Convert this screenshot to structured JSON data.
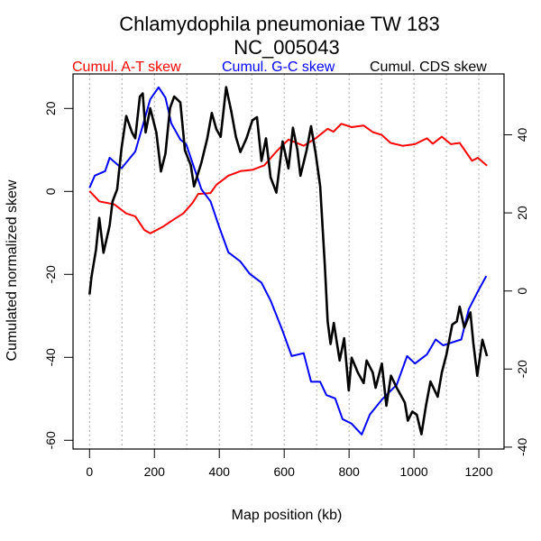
{
  "chart_data": {
    "type": "line",
    "title": "Chlamydophila pneumoniae TW 183",
    "subtitle": "NC_005043",
    "xlabel": "Map position (kb)",
    "ylabel": "Cumulated normalized skew",
    "xlim": [
      0,
      1225
    ],
    "ylim_left": [
      -60,
      25
    ],
    "ylim_right": [
      -40,
      52
    ],
    "x_ticks": [
      0,
      200,
      400,
      600,
      800,
      1000,
      1200
    ],
    "y_ticks_left": [
      -60,
      -40,
      -20,
      0,
      20
    ],
    "y_ticks_right": [
      -40,
      -20,
      0,
      20,
      40
    ],
    "grid": "vertical dotted every 100 kb",
    "legend_placement": "top",
    "colors": {
      "at": "#ff0000",
      "gc": "#0000ff",
      "cds": "#000000"
    },
    "series": [
      {
        "name": "Cumul. A-T skew",
        "axis": "left",
        "color": "#ff0000",
        "x": [
          0,
          30,
          76,
          113,
          141,
          169,
          187,
          224,
          261,
          289,
          317,
          335,
          373,
          391,
          428,
          465,
          502,
          539,
          576,
          613,
          660,
          697,
          734,
          752,
          776,
          808,
          845,
          873,
          901,
          928,
          965,
          1003,
          1040,
          1058,
          1086,
          1114,
          1141,
          1179,
          1197,
          1225
        ],
        "y": [
          0.1,
          -2.4,
          -3.1,
          -5.3,
          -6,
          -9.3,
          -10.1,
          -8.6,
          -6.7,
          -5.3,
          -2.8,
          -0.6,
          -0.4,
          1.6,
          3.8,
          4.9,
          5.2,
          6.3,
          9.6,
          12.5,
          11,
          12.8,
          15.1,
          14.4,
          16.3,
          15.5,
          15.9,
          14.3,
          13.6,
          11.7,
          11,
          11.4,
          12.8,
          11.5,
          13.2,
          11.4,
          11.7,
          7.4,
          8.1,
          6.2
        ]
      },
      {
        "name": "Cumul. G-C skew",
        "axis": "left",
        "color": "#0000ff",
        "x": [
          0,
          16,
          48,
          62,
          99,
          141,
          169,
          187,
          213,
          234,
          252,
          280,
          298,
          326,
          345,
          373,
          400,
          428,
          465,
          493,
          530,
          558,
          595,
          623,
          660,
          683,
          711,
          730,
          757,
          780,
          808,
          839,
          864,
          901,
          947,
          979,
          1003,
          1040,
          1067,
          1090,
          1146,
          1169,
          1197,
          1223
        ],
        "y": [
          0.9,
          3.8,
          4.9,
          8.1,
          5.6,
          9.6,
          17.2,
          22.2,
          25.1,
          22.6,
          16.4,
          12.5,
          11.4,
          4.9,
          0.5,
          -2.4,
          -8.6,
          -14.7,
          -16.9,
          -19.8,
          -22,
          -26.3,
          -33.6,
          -39.7,
          -39,
          -45.9,
          -45.9,
          -49.1,
          -49.9,
          -54.9,
          -56,
          -58.6,
          -53.8,
          -50.2,
          -46.6,
          -39.7,
          -41.5,
          -39.3,
          -35.7,
          -37.1,
          -35.7,
          -28.4,
          -24.1,
          -20.4
        ]
      },
      {
        "name": "Cumul. CDS skew",
        "axis": "right",
        "color": "#000000",
        "x": [
          0,
          6,
          20,
          30,
          43,
          62,
          71,
          85,
          99,
          113,
          131,
          141,
          155,
          164,
          173,
          187,
          206,
          220,
          234,
          248,
          261,
          280,
          294,
          312,
          322,
          345,
          363,
          377,
          391,
          404,
          421,
          437,
          451,
          465,
          484,
          502,
          516,
          530,
          544,
          558,
          576,
          595,
          613,
          627,
          641,
          650,
          669,
          683,
          697,
          711,
          725,
          734,
          743,
          753,
          771,
          785,
          799,
          808,
          827,
          845,
          854,
          873,
          882,
          901,
          915,
          929,
          947,
          972,
          981,
          995,
          1009,
          1023,
          1037,
          1051,
          1073,
          1086,
          1100,
          1118,
          1132,
          1141,
          1155,
          1174,
          1183,
          1195,
          1211,
          1225
        ],
        "y": [
          -0.9,
          3.7,
          10.6,
          18.7,
          9.8,
          16.8,
          22.9,
          26,
          36.8,
          44.8,
          40.6,
          39.1,
          49.8,
          50.6,
          40.6,
          46.8,
          40.6,
          30.6,
          35.2,
          46.8,
          49.8,
          48.3,
          36,
          32.2,
          26.8,
          32.9,
          39.1,
          45.6,
          41.4,
          39.5,
          52.2,
          46,
          39.5,
          35.6,
          39.1,
          43.7,
          44.5,
          33.3,
          39.1,
          29.1,
          25.2,
          38.3,
          31.4,
          41.8,
          36,
          29.5,
          36,
          42.2,
          35.2,
          26.8,
          6.8,
          -7.8,
          -13.6,
          -8.2,
          -17.8,
          -12.1,
          -25.5,
          -17.1,
          -20.9,
          -23.6,
          -17.8,
          -20.9,
          -24.8,
          -18.6,
          -29.4,
          -21.7,
          -24.8,
          -28.6,
          -33.2,
          -30.9,
          -31.7,
          -36.7,
          -29.4,
          -23.2,
          -27.1,
          -20.9,
          -16.3,
          -8.6,
          -7.8,
          -4,
          -9.4,
          -5.5,
          -13.2,
          -21.7,
          -12.5,
          -16.7
        ]
      }
    ]
  }
}
